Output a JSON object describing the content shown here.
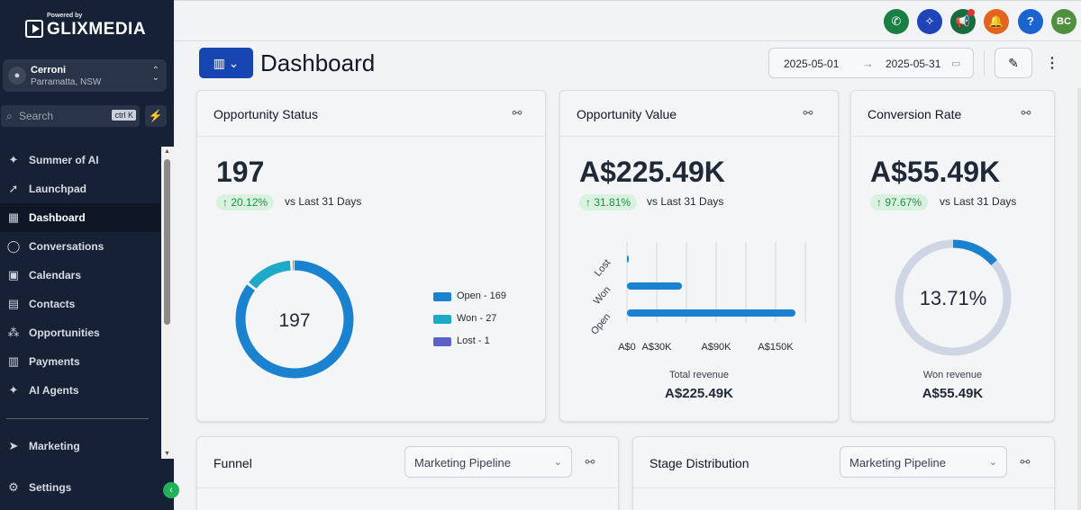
{
  "brand": {
    "powered_by": "Powered by",
    "name": "GLIXMEDIA"
  },
  "location": {
    "name": "Cerroni",
    "address": "Parramatta, NSW"
  },
  "search": {
    "placeholder": "Search",
    "shortcut": "ctrl K"
  },
  "sidebar": {
    "items": [
      {
        "label": "Summer of AI",
        "icon": "sparkle-icon",
        "glyph": "✦"
      },
      {
        "label": "Launchpad",
        "icon": "rocket-icon",
        "glyph": "🚀"
      },
      {
        "label": "Dashboard",
        "icon": "grid-icon",
        "glyph": "▦"
      },
      {
        "label": "Conversations",
        "icon": "chat-bubble-icon",
        "glyph": "◯"
      },
      {
        "label": "Calendars",
        "icon": "calendar-icon",
        "glyph": "▣"
      },
      {
        "label": "Contacts",
        "icon": "contacts-icon",
        "glyph": "▤"
      },
      {
        "label": "Opportunities",
        "icon": "network-icon",
        "glyph": "⁂"
      },
      {
        "label": "Payments",
        "icon": "receipt-icon",
        "glyph": "▥"
      },
      {
        "label": "AI Agents",
        "icon": "sparkle-agent-icon",
        "glyph": "✦"
      }
    ],
    "marketing": {
      "label": "Marketing",
      "icon": "send-icon",
      "glyph": "➤"
    },
    "settings": {
      "label": "Settings",
      "icon": "gear-icon",
      "glyph": "⚙"
    }
  },
  "topbar": {
    "avatar_initials": "BC"
  },
  "header": {
    "title": "Dashboard",
    "date_start": "2025-05-01",
    "date_end": "2025-05-31"
  },
  "cards": {
    "opportunity_status": {
      "title": "Opportunity Status",
      "value": "197",
      "delta": "↑ 20.12%",
      "delta_caption": "vs Last 31 Days",
      "donut_center": "197",
      "legend": [
        {
          "label": "Open - 169",
          "color": "#1a82cf"
        },
        {
          "label": "Won - 27",
          "color": "#1ea9c9"
        },
        {
          "label": "Lost - 1",
          "color": "#5b63c9"
        }
      ]
    },
    "opportunity_value": {
      "title": "Opportunity Value",
      "value": "A$225.49K",
      "delta": "↑ 31.81%",
      "delta_caption": "vs Last 31 Days",
      "total_caption": "Total revenue",
      "total_value": "A$225.49K"
    },
    "conversion_rate": {
      "title": "Conversion Rate",
      "value": "A$55.49K",
      "delta": "↑ 97.67%",
      "delta_caption": "vs Last 31 Days",
      "gauge_center": "13.71%",
      "gauge_fraction": 0.1371,
      "won_caption": "Won revenue",
      "won_value": "A$55.49K"
    },
    "funnel": {
      "title": "Funnel",
      "pipeline": "Marketing Pipeline"
    },
    "stage_distribution": {
      "title": "Stage Distribution",
      "pipeline": "Marketing Pipeline"
    }
  },
  "chart_data": [
    {
      "type": "pie",
      "categories": [
        "Open",
        "Won",
        "Lost"
      ],
      "values": [
        169,
        27,
        1
      ],
      "colors": [
        "#1a82cf",
        "#1ea9c9",
        "#5b63c9"
      ]
    },
    {
      "type": "bar",
      "orientation": "horizontal",
      "categories": [
        "Lost",
        "Won",
        "Open"
      ],
      "values": [
        1000,
        55490,
        170000
      ],
      "xlim": [
        0,
        180000
      ],
      "tick_labels": [
        "A$0",
        "A$30K",
        "A$90K",
        "A$150K"
      ],
      "tick_values": [
        0,
        30000,
        90000,
        150000
      ],
      "grid": true,
      "color": "#1a82cf"
    }
  ]
}
